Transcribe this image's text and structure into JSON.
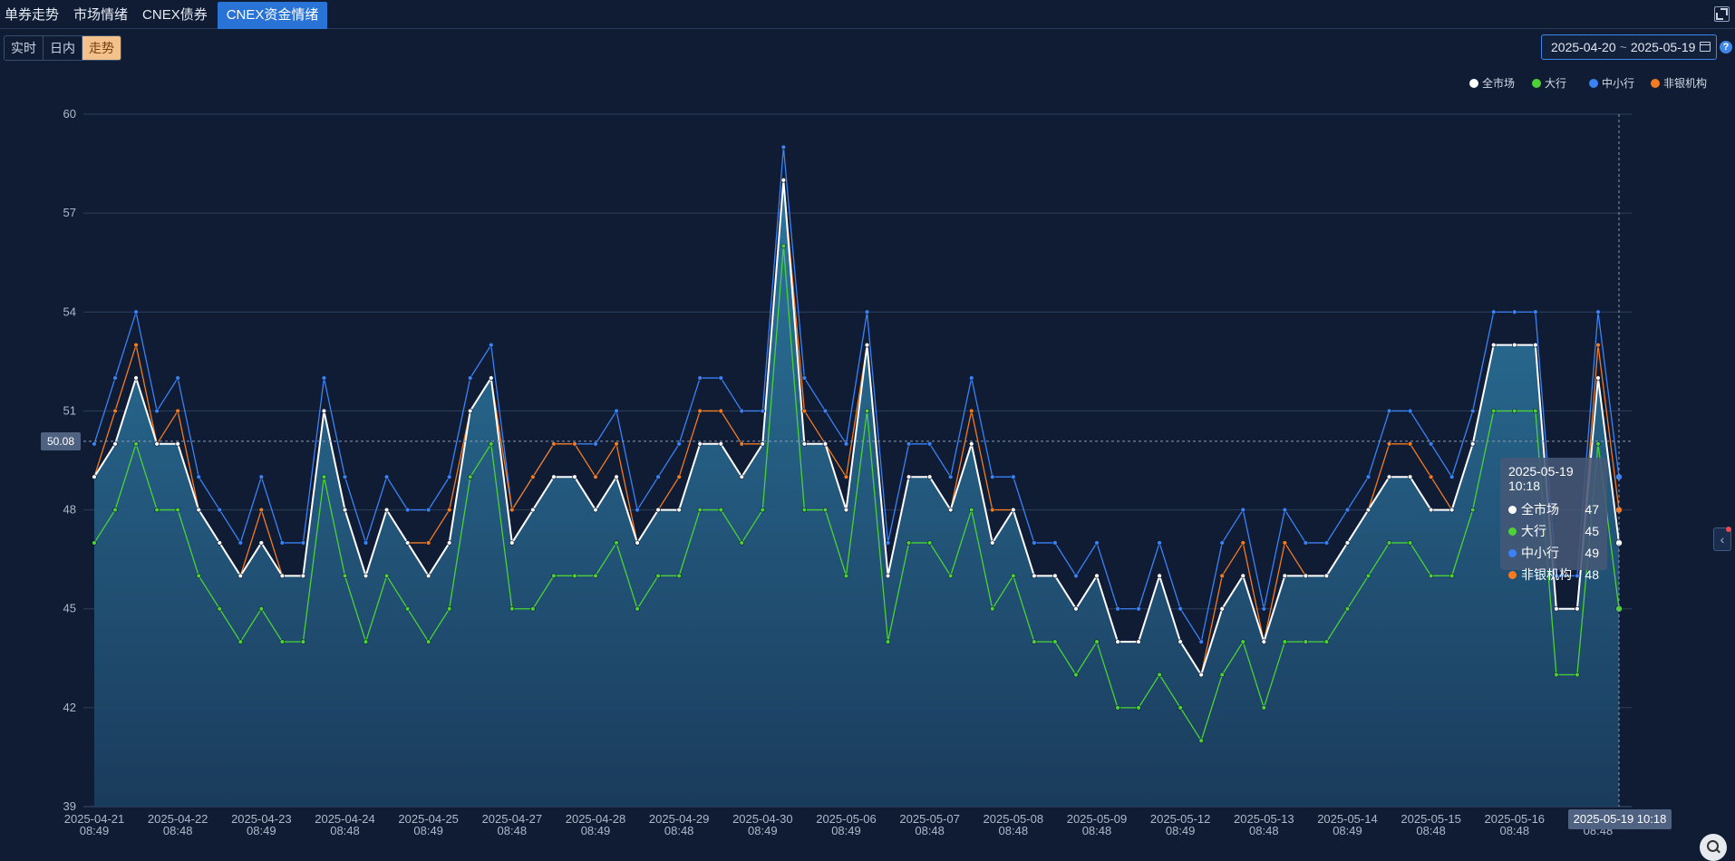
{
  "tabs": [
    {
      "label": "单券走势",
      "active": false
    },
    {
      "label": "市场情绪",
      "active": false
    },
    {
      "label": "CNEX债券",
      "active": false
    },
    {
      "label": "CNEX资金情绪",
      "active": true
    }
  ],
  "modes": [
    {
      "label": "实时",
      "active": false
    },
    {
      "label": "日内",
      "active": false
    },
    {
      "label": "走势",
      "active": true
    }
  ],
  "date_range": {
    "start": "2025-04-20",
    "separator": "~",
    "end": "2025-05-19"
  },
  "icons": {
    "expand": "expand-icon",
    "calendar": "calendar-icon",
    "help": "help-icon",
    "collapse_side": "chevron-left-icon",
    "zoom": "search-icon"
  },
  "crosshair": {
    "y_label": "50.08",
    "x_label": "2025-05-19 10:18"
  },
  "tooltip": {
    "title": "2025-05-19 10:18",
    "rows": [
      {
        "name": "全市场",
        "value": "47",
        "color": "#ffffff"
      },
      {
        "name": "大行",
        "value": "45",
        "color": "#4cd137"
      },
      {
        "name": "中小行",
        "value": "49",
        "color": "#3b82f6"
      },
      {
        "name": "非银机构",
        "value": "48",
        "color": "#f47b20"
      }
    ]
  },
  "chart_data": {
    "type": "line",
    "ylim": [
      39,
      60
    ],
    "yticks": [
      39,
      42,
      45,
      48,
      51,
      54,
      57,
      60
    ],
    "grid": true,
    "legend_position": "top-right",
    "x_tick_labels": [
      {
        "date": "2025-04-21",
        "time": "08:49"
      },
      {
        "date": "2025-04-22",
        "time": "08:48"
      },
      {
        "date": "2025-04-23",
        "time": "08:49"
      },
      {
        "date": "2025-04-24",
        "time": "08:48"
      },
      {
        "date": "2025-04-25",
        "time": "08:49"
      },
      {
        "date": "2025-04-27",
        "time": "08:48"
      },
      {
        "date": "2025-04-28",
        "time": "08:49"
      },
      {
        "date": "2025-04-29",
        "time": "08:48"
      },
      {
        "date": "2025-04-30",
        "time": "08:49"
      },
      {
        "date": "2025-05-06",
        "time": "08:49"
      },
      {
        "date": "2025-05-07",
        "time": "08:48"
      },
      {
        "date": "2025-05-08",
        "time": "08:48"
      },
      {
        "date": "2025-05-09",
        "time": "08:48"
      },
      {
        "date": "2025-05-12",
        "time": "08:49"
      },
      {
        "date": "2025-05-13",
        "time": "08:48"
      },
      {
        "date": "2025-05-14",
        "time": "08:49"
      },
      {
        "date": "2025-05-15",
        "time": "08:48"
      },
      {
        "date": "2025-05-16",
        "time": "08:48"
      },
      {
        "date": "2025-05-19",
        "time": "08:48"
      }
    ],
    "series": [
      {
        "name": "全市场",
        "color": "#ffffff",
        "area": true,
        "values": [
          49,
          50,
          52,
          50,
          50,
          48,
          47,
          46,
          47,
          46,
          46,
          51,
          48,
          46,
          48,
          47,
          46,
          47,
          51,
          52,
          47,
          48,
          49,
          49,
          48,
          49,
          47,
          48,
          48,
          50,
          50,
          49,
          50,
          58,
          50,
          50,
          48,
          53,
          46,
          49,
          49,
          48,
          50,
          47,
          48,
          46,
          46,
          45,
          46,
          44,
          44,
          46,
          44,
          43,
          45,
          46,
          44,
          46,
          46,
          46,
          47,
          48,
          49,
          49,
          48,
          48,
          50,
          53,
          53,
          53,
          45,
          45,
          52,
          47
        ]
      },
      {
        "name": "大行",
        "color": "#4cd137",
        "area": false,
        "values": [
          47,
          48,
          50,
          48,
          48,
          46,
          45,
          44,
          45,
          44,
          44,
          49,
          46,
          44,
          46,
          45,
          44,
          45,
          49,
          50,
          45,
          45,
          46,
          46,
          46,
          47,
          45,
          46,
          46,
          48,
          48,
          47,
          48,
          56,
          48,
          48,
          46,
          51,
          44,
          47,
          47,
          46,
          48,
          45,
          46,
          44,
          44,
          43,
          44,
          42,
          42,
          43,
          42,
          41,
          43,
          44,
          42,
          44,
          44,
          44,
          45,
          46,
          47,
          47,
          46,
          46,
          48,
          51,
          51,
          51,
          43,
          43,
          50,
          45
        ]
      },
      {
        "name": "中小行",
        "color": "#3b82f6",
        "area": false,
        "values": [
          50,
          52,
          54,
          51,
          52,
          49,
          48,
          47,
          49,
          47,
          47,
          52,
          49,
          47,
          49,
          48,
          48,
          49,
          52,
          53,
          48,
          49,
          50,
          50,
          50,
          51,
          48,
          49,
          50,
          52,
          52,
          51,
          51,
          59,
          52,
          51,
          50,
          54,
          47,
          50,
          50,
          49,
          52,
          49,
          49,
          47,
          47,
          46,
          47,
          45,
          45,
          47,
          45,
          44,
          47,
          48,
          45,
          48,
          47,
          47,
          48,
          49,
          51,
          51,
          50,
          49,
          51,
          54,
          54,
          54,
          46,
          46,
          54,
          49
        ]
      },
      {
        "name": "非银机构",
        "color": "#f47b20",
        "area": false,
        "values": [
          49,
          51,
          53,
          50,
          51,
          48,
          47,
          46,
          48,
          46,
          46,
          51,
          48,
          46,
          48,
          47,
          47,
          48,
          51,
          52,
          48,
          49,
          50,
          50,
          49,
          50,
          47,
          48,
          49,
          51,
          51,
          50,
          50,
          58,
          51,
          50,
          49,
          53,
          46,
          49,
          49,
          48,
          51,
          48,
          48,
          46,
          46,
          45,
          46,
          44,
          44,
          46,
          44,
          43,
          46,
          47,
          44,
          47,
          46,
          46,
          47,
          48,
          50,
          50,
          49,
          48,
          50,
          53,
          53,
          53,
          45,
          45,
          53,
          48
        ]
      }
    ]
  }
}
